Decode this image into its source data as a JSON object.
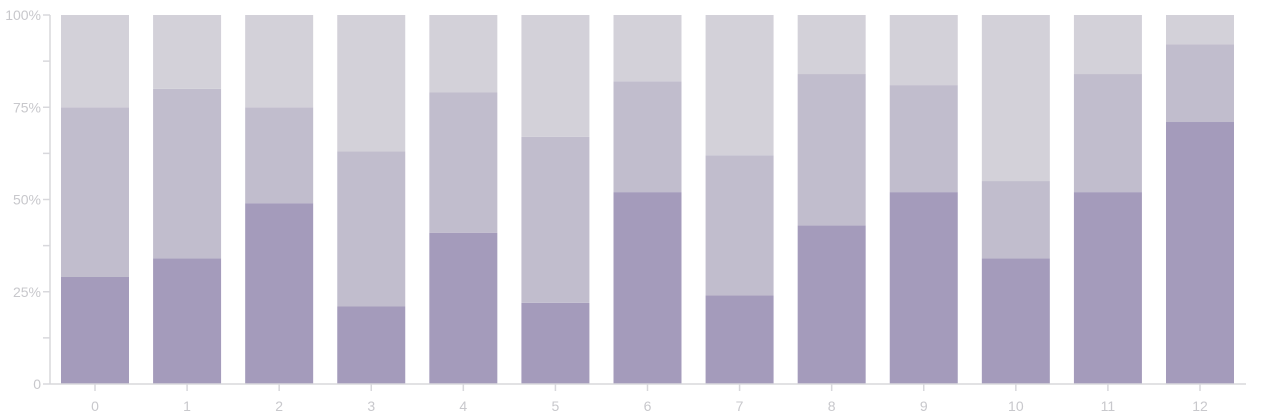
{
  "chart_data": {
    "type": "bar",
    "stacked": true,
    "normalized": true,
    "categories": [
      "0",
      "1",
      "2",
      "3",
      "4",
      "5",
      "6",
      "7",
      "8",
      "9",
      "10",
      "11",
      "12"
    ],
    "series": [
      {
        "color": "#a49bbb",
        "values": [
          29,
          34,
          49,
          21,
          41,
          22,
          52,
          24,
          43,
          52,
          34,
          52,
          71
        ]
      },
      {
        "color": "#c1bdcd",
        "values": [
          46,
          46,
          26,
          42,
          38,
          45,
          30,
          38,
          41,
          29,
          21,
          32,
          21
        ]
      },
      {
        "color": "#d3d1d9",
        "values": [
          25,
          20,
          25,
          37,
          21,
          33,
          18,
          38,
          16,
          19,
          45,
          16,
          8
        ]
      }
    ],
    "yticks": [
      {
        "value": 0,
        "label": "0"
      },
      {
        "value": 25,
        "label": "25%"
      },
      {
        "value": 50,
        "label": "50%"
      },
      {
        "value": 75,
        "label": "75%"
      },
      {
        "value": 100,
        "label": "100%"
      }
    ],
    "ylim": [
      0,
      100
    ],
    "title": "",
    "xlabel": "",
    "ylabel": "",
    "grid": false,
    "legend": "none"
  }
}
